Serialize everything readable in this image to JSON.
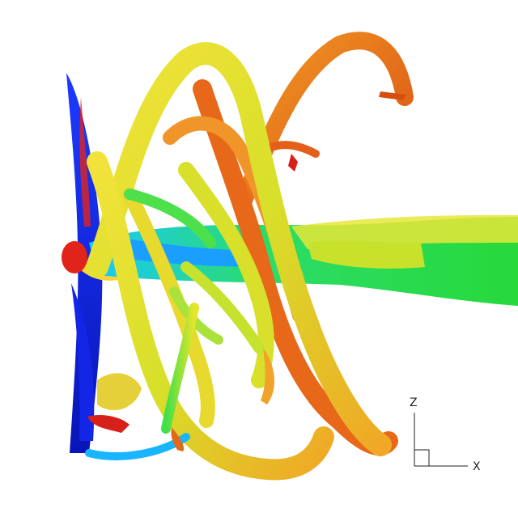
{
  "scene": {
    "type": "3D vortex-core isosurface visualization (rotor wake)",
    "background": "#ffffff",
    "colormap": [
      "#0a1ad8",
      "#19b7ff",
      "#22e07a",
      "#b5e61d",
      "#f2e52a",
      "#f5a623",
      "#e85a14",
      "#d8201a"
    ]
  },
  "axes": {
    "vertical_label": "Z",
    "horizontal_label": "X"
  }
}
